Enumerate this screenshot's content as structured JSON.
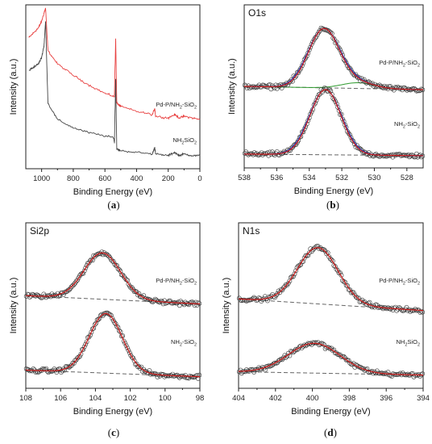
{
  "chart_data": [
    {
      "id": "a",
      "type": "line",
      "caption": "a",
      "title": "",
      "xlabel": "Binding Energy (eV)",
      "ylabel": "Intensity (a.u.)",
      "xlim": [
        1100,
        0
      ],
      "x_ticks": [
        1000,
        800,
        600,
        400,
        200,
        0
      ],
      "series": [
        {
          "name": "Pd-P/NH2-SiO2",
          "label_main": "Pd-P/NH",
          "label_sub": "2",
          "label_tail": "-SiO",
          "label_sub2": "2",
          "color": "#e84040",
          "x": [
            1080,
            1050,
            1020,
            1000,
            985,
            975,
            960,
            900,
            800,
            700,
            600,
            540,
            532,
            525,
            500,
            400,
            300,
            285,
            280,
            200,
            160,
            130,
            100,
            50,
            0
          ],
          "y": [
            0.8,
            0.83,
            0.86,
            0.9,
            0.95,
            0.98,
            0.72,
            0.64,
            0.57,
            0.51,
            0.46,
            0.44,
            0.8,
            0.4,
            0.38,
            0.35,
            0.33,
            0.37,
            0.32,
            0.31,
            0.33,
            0.31,
            0.32,
            0.31,
            0.3
          ]
        },
        {
          "name": "NH2SiO2",
          "label_main": "NH",
          "label_sub": "2",
          "label_tail": "SiO",
          "label_sub2": "2",
          "color": "#444444",
          "x": [
            1080,
            1050,
            1020,
            1000,
            985,
            975,
            960,
            900,
            800,
            700,
            600,
            545,
            540,
            532,
            525,
            500,
            400,
            300,
            285,
            280,
            200,
            160,
            130,
            100,
            50,
            0
          ],
          "y": [
            0.6,
            0.62,
            0.64,
            0.68,
            0.75,
            0.9,
            0.4,
            0.3,
            0.25,
            0.22,
            0.2,
            0.19,
            0.16,
            0.55,
            0.12,
            0.11,
            0.1,
            0.09,
            0.13,
            0.09,
            0.08,
            0.1,
            0.08,
            0.09,
            0.08,
            0.08
          ]
        }
      ]
    },
    {
      "id": "b",
      "type": "scatter",
      "caption": "b",
      "title": "O1s",
      "xlabel": "Binding Energy (eV)",
      "ylabel": "Intensity (a.u.)",
      "xlim": [
        538,
        527
      ],
      "x_ticks": [
        538,
        536,
        534,
        532,
        530,
        528
      ],
      "peaks": [
        {
          "name": "Pd-P/NH2-SiO2",
          "label_main": "Pd-P/NH",
          "label_sub": "2",
          "label_tail": "-SiO",
          "label_sub2": "2",
          "center": 533.1,
          "sigma": 0.95,
          "amplitude": 0.36,
          "baseline": [
            0.5,
            0.48
          ],
          "component": {
            "center": 531.0,
            "sigma": 1.0,
            "amplitude": 0.035
          }
        },
        {
          "name": "NH2-SiO2",
          "label_main": "NH",
          "label_sub": "2",
          "label_tail": "-SiO",
          "label_sub2": "2",
          "center": 533.0,
          "sigma": 0.95,
          "amplitude": 0.4,
          "baseline": [
            0.085,
            0.075
          ],
          "component": null
        }
      ]
    },
    {
      "id": "c",
      "type": "scatter",
      "caption": "c",
      "title": "Si2p",
      "xlabel": "Binding Energy (eV)",
      "ylabel": "Intensity (a.u.)",
      "xlim": [
        108,
        98
      ],
      "x_ticks": [
        108,
        106,
        104,
        102,
        100,
        98
      ],
      "peaks": [
        {
          "name": "Pd-P/NH2-SiO2",
          "label_main": "Pd-P/NH",
          "label_sub": "2",
          "label_tail": "-SiO",
          "label_sub2": "2",
          "center": 103.6,
          "sigma": 1.05,
          "amplitude": 0.28,
          "baseline": [
            0.56,
            0.51
          ],
          "component": null
        },
        {
          "name": "NH2-SiO2",
          "label_main": "NH",
          "label_sub": "2",
          "label_tail": "-SiO",
          "label_sub2": "2",
          "center": 103.4,
          "sigma": 0.95,
          "amplitude": 0.36,
          "baseline": [
            0.11,
            0.07
          ],
          "component": null
        }
      ]
    },
    {
      "id": "d",
      "type": "scatter",
      "caption": "d",
      "title": "N1s",
      "xlabel": "Binding Energy (eV)",
      "ylabel": "Intensity (a.u.)",
      "xlim": [
        404,
        394
      ],
      "x_ticks": [
        404,
        402,
        400,
        398,
        396,
        394
      ],
      "peaks": [
        {
          "name": "Pd-P/NH2-SiO2",
          "label_main": "Pd-P/NH",
          "label_sub": "2",
          "label_tail": "-SiO",
          "label_sub2": "2",
          "center": 399.7,
          "sigma": 1.1,
          "amplitude": 0.34,
          "baseline": [
            0.54,
            0.47
          ],
          "component": null
        },
        {
          "name": "NH2SiO2",
          "label_main": "NH",
          "label_sub": "2",
          "label_tail": "SiO",
          "label_sub2": "2",
          "center": 399.9,
          "sigma": 1.4,
          "amplitude": 0.18,
          "baseline": [
            0.1,
            0.08
          ],
          "component": null
        }
      ]
    }
  ],
  "colors": {
    "fit_line": "#cc1a1a",
    "envelope_b": "#1f3fbf",
    "component_b": "#2e9a2e",
    "baseline": "#666666",
    "points": "#333333",
    "frame": "#222222"
  }
}
